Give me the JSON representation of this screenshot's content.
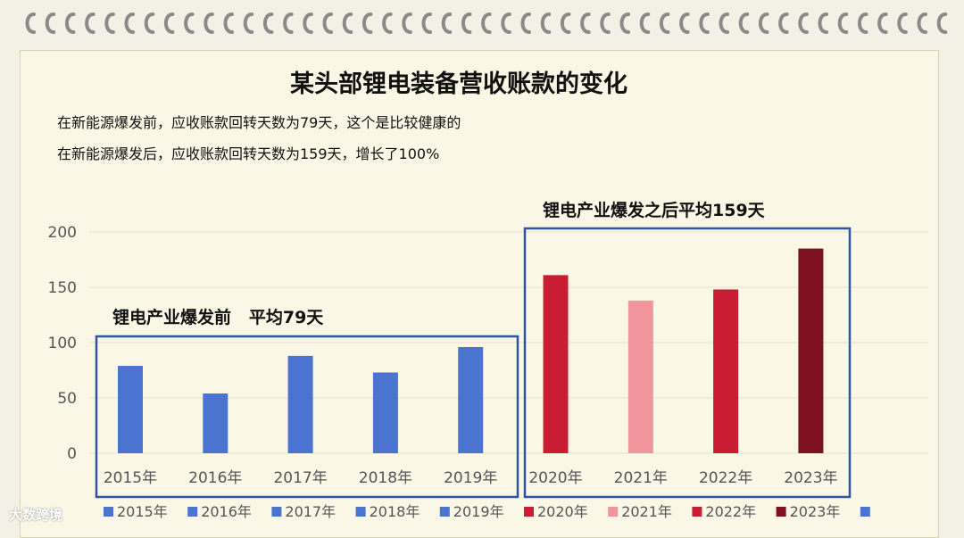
{
  "title": "某头部锂电装备营收账款的变化",
  "notes": [
    "在新能源爆发前，应收账款回转天数为79天，这个是比较健康的",
    "在新能源爆发后，应收账款回转天数为159天，增长了100%"
  ],
  "watermark": "大数跨境",
  "chart_data": {
    "type": "bar",
    "categories": [
      "2015年",
      "2016年",
      "2017年",
      "2018年",
      "2019年",
      "2020年",
      "2021年",
      "2022年",
      "2023年"
    ],
    "values": [
      79,
      54,
      88,
      73,
      96,
      161,
      138,
      148,
      185
    ],
    "colors": [
      "#4a74cf",
      "#4a74cf",
      "#4a74cf",
      "#4a74cf",
      "#4a74cf",
      "#c81d32",
      "#f0959c",
      "#c81d32",
      "#7e1120"
    ],
    "ylim": [
      0,
      200
    ],
    "yticks": [
      0,
      50,
      100,
      150,
      200
    ],
    "grid": true,
    "legend": {
      "placement": "bottom",
      "entries": [
        {
          "label": "2015年",
          "color": "#4a74cf"
        },
        {
          "label": "2016年",
          "color": "#4a74cf"
        },
        {
          "label": "2017年",
          "color": "#4a74cf"
        },
        {
          "label": "2018年",
          "color": "#4a74cf"
        },
        {
          "label": "2019年",
          "color": "#4a74cf"
        },
        {
          "label": "2020年",
          "color": "#c81d32"
        },
        {
          "label": "2021年",
          "color": "#f0959c"
        },
        {
          "label": "2022年",
          "color": "#c81d32"
        },
        {
          "label": "2023年",
          "color": "#7e1120"
        },
        {
          "label": "",
          "color": "#4a74cf"
        }
      ]
    },
    "annotations": [
      {
        "text": "锂电产业爆发前   平均79天",
        "group": [
          0,
          4
        ],
        "box_color": "#2f55a4"
      },
      {
        "text": "锂电产业爆发之后平均159天",
        "group": [
          5,
          8
        ],
        "box_color": "#2f55a4"
      }
    ]
  }
}
